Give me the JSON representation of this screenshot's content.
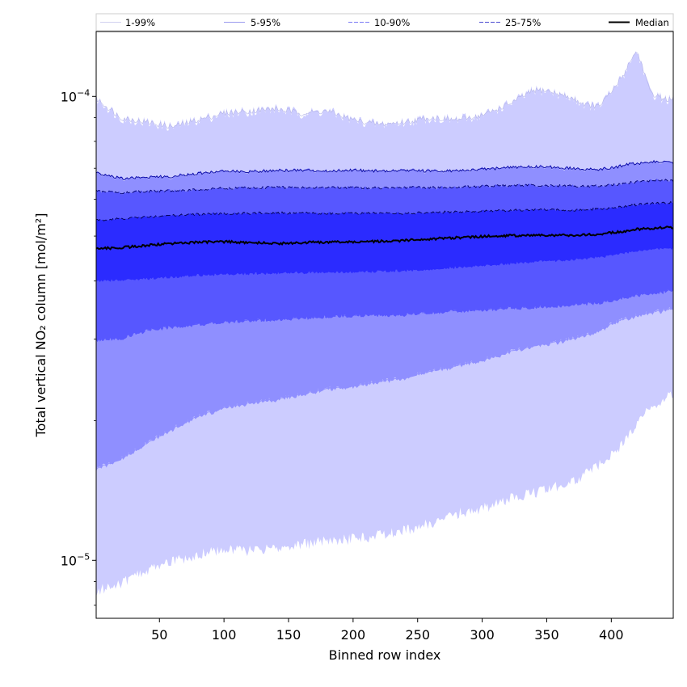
{
  "chart_data": {
    "type": "area",
    "xlabel": "Binned row index",
    "ylabel": "Total vertical NO₂ column [mol/m²]",
    "xlim": [
      1,
      448
    ],
    "ylim": [
      7.5e-06,
      0.000138
    ],
    "y_scale": "log",
    "grid": false,
    "legend_placement": "top",
    "x_ticks": [
      50,
      100,
      150,
      200,
      250,
      300,
      350,
      400
    ],
    "x_tick_labels": [
      "50",
      "100",
      "150",
      "200",
      "250",
      "300",
      "350",
      "400"
    ],
    "y_ticks": [
      {
        "value": 1e-05,
        "base": "10",
        "exp": "−5"
      },
      {
        "value": 0.0001,
        "base": "10",
        "exp": "−4"
      }
    ],
    "x": [
      1,
      20,
      40,
      60,
      80,
      100,
      120,
      140,
      160,
      180,
      200,
      220,
      240,
      260,
      280,
      300,
      320,
      340,
      350,
      360,
      370,
      380,
      390,
      400,
      410,
      415,
      420,
      425,
      430,
      440,
      448
    ],
    "bands": [
      {
        "name": "1-99%",
        "color": "#ccccff",
        "line_color": "#b4b4e8",
        "dash": "",
        "lower": [
          8.6e-06,
          8.9e-06,
          9.5e-06,
          9.9e-06,
          1.03e-05,
          1.05e-05,
          1.05e-05,
          1.06e-05,
          1.08e-05,
          1.1e-05,
          1.11e-05,
          1.13e-05,
          1.16e-05,
          1.2e-05,
          1.26e-05,
          1.29e-05,
          1.35e-05,
          1.4e-05,
          1.42e-05,
          1.45e-05,
          1.48e-05,
          1.53e-05,
          1.6e-05,
          1.68e-05,
          1.8e-05,
          1.89e-05,
          1.96e-05,
          2.05e-05,
          2.12e-05,
          2.22e-05,
          2.3e-05
        ],
        "upper": [
          9.9e-05,
          9e-05,
          8.8e-05,
          8.6e-05,
          8.9e-05,
          9.2e-05,
          9.3e-05,
          9.4e-05,
          9.2e-05,
          9.3e-05,
          8.9e-05,
          8.7e-05,
          8.8e-05,
          9e-05,
          8.9e-05,
          9.1e-05,
          9.6e-05,
          0.000103,
          0.000103,
          0.000101,
          9.9e-05,
          9.6e-05,
          9.5e-05,
          0.000102,
          0.000112,
          0.00012,
          0.000125,
          0.000114,
          0.000102,
          9.9e-05,
          9.8e-05
        ]
      },
      {
        "name": "5-95%",
        "color": "#8f8fff",
        "line_color": "#0000a0",
        "dash": "",
        "lower": [
          1.57e-05,
          1.65e-05,
          1.78e-05,
          1.92e-05,
          2.04e-05,
          2.13e-05,
          2.18e-05,
          2.22e-05,
          2.28e-05,
          2.34e-05,
          2.37e-05,
          2.42e-05,
          2.47e-05,
          2.55e-05,
          2.62e-05,
          2.7e-05,
          2.8e-05,
          2.9e-05,
          2.93e-05,
          2.96e-05,
          3e-05,
          3.05e-05,
          3.12e-05,
          3.22e-05,
          3.3e-05,
          3.34e-05,
          3.37e-05,
          3.39e-05,
          3.41e-05,
          3.45e-05,
          3.48e-05
        ],
        "upper": [
          6.85e-05,
          6.65e-05,
          6.7e-05,
          6.72e-05,
          6.82e-05,
          6.9e-05,
          6.88e-05,
          6.92e-05,
          6.92e-05,
          6.9e-05,
          6.93e-05,
          6.9e-05,
          6.92e-05,
          6.9e-05,
          6.92e-05,
          6.96e-05,
          7.02e-05,
          7.05e-05,
          7.05e-05,
          7.03e-05,
          7e-05,
          6.97e-05,
          6.96e-05,
          7e-05,
          7.1e-05,
          7.15e-05,
          7.15e-05,
          7.18e-05,
          7.22e-05,
          7.25e-05,
          7.2e-05
        ]
      },
      {
        "name": "10-90%",
        "color": "#5757ff",
        "line_color": "#000070",
        "dash": "6 3",
        "lower": [
          2.98e-05,
          3e-05,
          3.12e-05,
          3.18e-05,
          3.22e-05,
          3.26e-05,
          3.28e-05,
          3.3e-05,
          3.32e-05,
          3.35e-05,
          3.36e-05,
          3.37e-05,
          3.38e-05,
          3.41e-05,
          3.44e-05,
          3.46e-05,
          3.49e-05,
          3.51e-05,
          3.52e-05,
          3.53e-05,
          3.55e-05,
          3.57e-05,
          3.58e-05,
          3.63e-05,
          3.68e-05,
          3.7e-05,
          3.72e-05,
          3.74e-05,
          3.76e-05,
          3.78e-05,
          3.82e-05
        ],
        "upper": [
          6.25e-05,
          6.2e-05,
          6.24e-05,
          6.26e-05,
          6.3e-05,
          6.34e-05,
          6.35e-05,
          6.37e-05,
          6.36e-05,
          6.36e-05,
          6.36e-05,
          6.35e-05,
          6.36e-05,
          6.36e-05,
          6.37e-05,
          6.4e-05,
          6.42e-05,
          6.44e-05,
          6.43e-05,
          6.42e-05,
          6.41e-05,
          6.4e-05,
          6.42e-05,
          6.44e-05,
          6.48e-05,
          6.52e-05,
          6.55e-05,
          6.58e-05,
          6.58e-05,
          6.6e-05,
          6.58e-05
        ]
      },
      {
        "name": "25-75%",
        "color": "#2b2bff",
        "line_color": "#000050",
        "dash": "6 3",
        "lower": [
          4e-05,
          4.02e-05,
          4.05e-05,
          4.08e-05,
          4.12e-05,
          4.14e-05,
          4.15e-05,
          4.16e-05,
          4.17e-05,
          4.18e-05,
          4.19e-05,
          4.2e-05,
          4.21e-05,
          4.24e-05,
          4.28e-05,
          4.32e-05,
          4.36e-05,
          4.4e-05,
          4.42e-05,
          4.43e-05,
          4.45e-05,
          4.48e-05,
          4.5e-05,
          4.55e-05,
          4.6e-05,
          4.62e-05,
          4.64e-05,
          4.66e-05,
          4.68e-05,
          4.7e-05,
          4.7e-05
        ],
        "upper": [
          5.4e-05,
          5.45e-05,
          5.5e-05,
          5.54e-05,
          5.57e-05,
          5.59e-05,
          5.6e-05,
          5.61e-05,
          5.6e-05,
          5.6e-05,
          5.6e-05,
          5.6e-05,
          5.6e-05,
          5.62e-05,
          5.64e-05,
          5.66e-05,
          5.68e-05,
          5.7e-05,
          5.7e-05,
          5.69e-05,
          5.69e-05,
          5.7e-05,
          5.72e-05,
          5.75e-05,
          5.8e-05,
          5.82e-05,
          5.84e-05,
          5.86e-05,
          5.88e-05,
          5.9e-05,
          5.9e-05
        ]
      }
    ],
    "median": {
      "name": "Median",
      "color": "#000000",
      "values": [
        4.7e-05,
        4.72e-05,
        4.77e-05,
        4.82e-05,
        4.85e-05,
        4.86e-05,
        4.84e-05,
        4.82e-05,
        4.84e-05,
        4.85e-05,
        4.86e-05,
        4.87e-05,
        4.89e-05,
        4.93e-05,
        4.96e-05,
        4.99e-05,
        5.01e-05,
        5.02e-05,
        5.02e-05,
        5.02e-05,
        5.02e-05,
        5.03e-05,
        5.05e-05,
        5.08e-05,
        5.12e-05,
        5.15e-05,
        5.17e-05,
        5.18e-05,
        5.19e-05,
        5.21e-05,
        5.22e-05
      ]
    }
  }
}
